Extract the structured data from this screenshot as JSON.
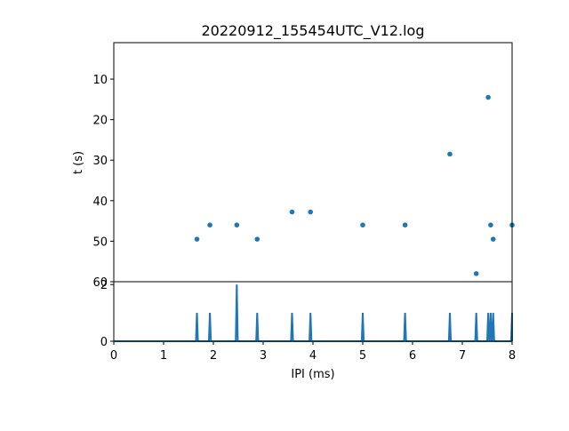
{
  "chart_data": {
    "type": "scatter",
    "title": "20220912_155454UTC_V12.log",
    "color": "#1f77b4",
    "panels": [
      {
        "name": "scatter",
        "type": "scatter",
        "xlabel": "",
        "ylabel": "t (s)",
        "xlim": [
          0,
          8
        ],
        "ylim": [
          60,
          1
        ],
        "y_inverted": true,
        "yticks": [
          10,
          20,
          30,
          40,
          50,
          60
        ],
        "points": [
          {
            "x": 1.67,
            "y": 49.5
          },
          {
            "x": 1.93,
            "y": 46.0
          },
          {
            "x": 2.47,
            "y": 46.0
          },
          {
            "x": 2.88,
            "y": 49.5
          },
          {
            "x": 3.58,
            "y": 42.8
          },
          {
            "x": 3.95,
            "y": 42.8
          },
          {
            "x": 5.0,
            "y": 46.0
          },
          {
            "x": 5.85,
            "y": 46.0
          },
          {
            "x": 6.75,
            "y": 28.5
          },
          {
            "x": 7.28,
            "y": 58.0
          },
          {
            "x": 7.52,
            "y": 14.5
          },
          {
            "x": 7.57,
            "y": 46.0
          },
          {
            "x": 7.62,
            "y": 49.5
          },
          {
            "x": 8.0,
            "y": 46.0
          }
        ]
      },
      {
        "name": "histogram",
        "type": "line",
        "xlabel": "IPI (ms)",
        "ylabel": "",
        "xlim": [
          0,
          8
        ],
        "ylim": [
          0,
          2.1
        ],
        "xticks": [
          0,
          1,
          2,
          3,
          4,
          5,
          6,
          7,
          8
        ],
        "yticks": [
          0,
          2
        ],
        "peaks": [
          {
            "x": 1.67,
            "count": 1
          },
          {
            "x": 1.93,
            "count": 1
          },
          {
            "x": 2.47,
            "count": 2
          },
          {
            "x": 2.88,
            "count": 1
          },
          {
            "x": 3.58,
            "count": 1
          },
          {
            "x": 3.95,
            "count": 1
          },
          {
            "x": 5.0,
            "count": 1
          },
          {
            "x": 5.85,
            "count": 1
          },
          {
            "x": 6.75,
            "count": 1
          },
          {
            "x": 7.28,
            "count": 1
          },
          {
            "x": 7.52,
            "count": 1
          },
          {
            "x": 7.57,
            "count": 1
          },
          {
            "x": 7.62,
            "count": 1
          },
          {
            "x": 8.0,
            "count": 1
          }
        ]
      }
    ]
  }
}
